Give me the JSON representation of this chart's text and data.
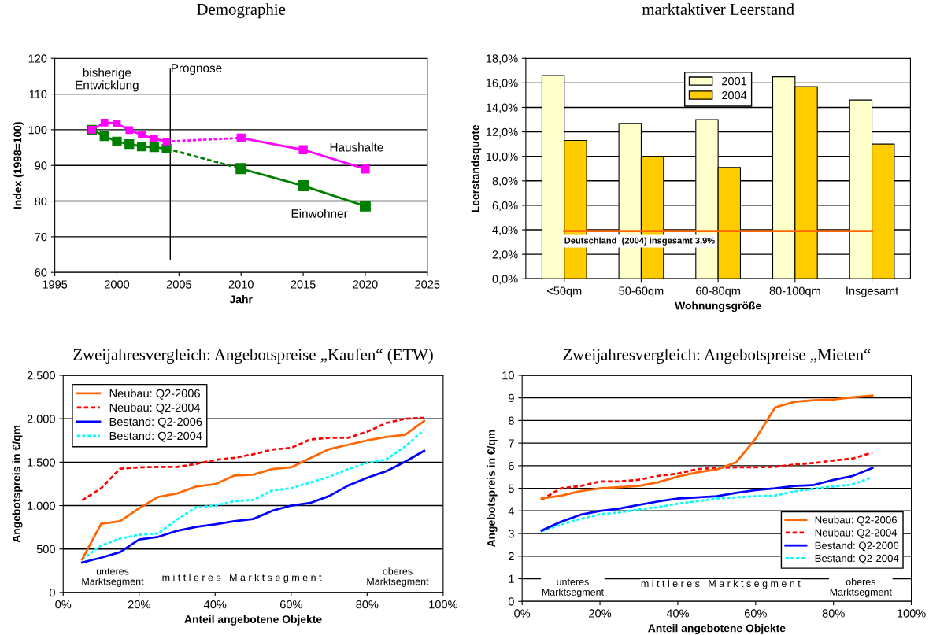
{
  "chart_data": [
    {
      "type": "line",
      "title": "Demographie",
      "xlabel": "Jahr",
      "ylabel": "Index (1998=100)",
      "xlim": [
        1995,
        2025
      ],
      "xticks": [
        1995,
        2000,
        2005,
        2010,
        2015,
        2020,
        2025
      ],
      "ylim": [
        60,
        120
      ],
      "yticks": [
        60,
        70,
        80,
        90,
        100,
        110,
        120
      ],
      "grid": "y",
      "legend": false,
      "series": [
        {
          "color": "#ff00ff",
          "x": [
            1998,
            1999,
            2000,
            2001,
            2002,
            2003,
            2004
          ],
          "values": [
            100,
            102,
            101.8,
            99.9,
            98.6,
            97.5,
            96.7
          ],
          "marker": "square",
          "line_style": "solid"
        },
        {
          "color": "#ff00ff",
          "x": [
            2004,
            2010
          ],
          "values": [
            96.7,
            97.7
          ],
          "line_style": "dotted"
        },
        {
          "color": "#ff00ff",
          "x": [
            2010,
            2015,
            2020
          ],
          "values": [
            97.7,
            94.4,
            89
          ],
          "marker": "square",
          "line_style": "solid"
        },
        {
          "color": "#008000",
          "x": [
            1998,
            1999,
            2000,
            2001,
            2002,
            2003,
            2004
          ],
          "values": [
            100,
            98.2,
            96.7,
            96,
            95.3,
            95.1,
            94.7
          ],
          "marker": "square",
          "line_style": "solid"
        },
        {
          "color": "#008000",
          "x": [
            2004,
            2010
          ],
          "values": [
            94.7,
            89.1
          ],
          "line_style": "dashed"
        },
        {
          "color": "#008000",
          "x": [
            2010,
            2015,
            2020
          ],
          "values": [
            89.1,
            84.3,
            78.6
          ],
          "marker": "square",
          "line_style": "solid"
        }
      ],
      "ref_lines": [
        {
          "axis": "x",
          "value": 2004.3,
          "color": "#000000"
        }
      ],
      "annotations": [
        "bisherige\nEntwicklung",
        "Prognose",
        "Haushalte",
        "Einwohner"
      ]
    },
    {
      "type": "bar",
      "title": "marktaktiver Leerstand",
      "xlabel": "Wohnungsgröße",
      "ylabel": "Leerstandsquote",
      "categories": [
        "<50qm",
        "50-60qm",
        "60-80qm",
        "80-100qm",
        "Insgesamt"
      ],
      "ylim": [
        0,
        18
      ],
      "yticks": [
        {
          "value": 0,
          "label": "0,0%"
        },
        {
          "value": 2,
          "label": "2,0%"
        },
        {
          "value": 4,
          "label": "4,0%"
        },
        {
          "value": 6,
          "label": "6,0%"
        },
        {
          "value": 8,
          "label": "8,0%"
        },
        {
          "value": 10,
          "label": "10,0%"
        },
        {
          "value": 12,
          "label": "12,0%"
        },
        {
          "value": 14,
          "label": "14,0%"
        },
        {
          "value": 16,
          "label": "16,0%"
        },
        {
          "value": 18,
          "label": "18,0%"
        }
      ],
      "grid": "y",
      "legend": "top center",
      "series": [
        {
          "name": "2001",
          "color": "#ffffcc",
          "values": [
            16.6,
            12.7,
            13.0,
            16.5,
            14.6
          ]
        },
        {
          "name": "2004",
          "color": "#ffcc00",
          "values": [
            11.3,
            10.0,
            9.1,
            15.7,
            11.0
          ]
        }
      ],
      "ref_lines": [
        {
          "axis": "y",
          "value": 3.9,
          "label": "Deutschland  (2004) insgesamt 3,9%",
          "color": "#ff6600"
        }
      ]
    },
    {
      "type": "line",
      "title": "Zweijahresvergleich: Angebotspreise „Kaufen“ (ETW)",
      "xlabel": "Anteil angebotene Objekte",
      "ylabel": "Angebotspreis in €/qm",
      "x": [
        5,
        10,
        15,
        20,
        25,
        30,
        35,
        40,
        45,
        50,
        55,
        60,
        65,
        70,
        75,
        80,
        85,
        90,
        95
      ],
      "xlim": [
        0,
        100
      ],
      "xticks": [
        {
          "value": 0,
          "label": "0%"
        },
        {
          "value": 20,
          "label": "20%"
        },
        {
          "value": 40,
          "label": "40%"
        },
        {
          "value": 60,
          "label": "60%"
        },
        {
          "value": 80,
          "label": "80%"
        },
        {
          "value": 100,
          "label": "100%"
        }
      ],
      "ylim": [
        0,
        2500
      ],
      "yticks": [
        {
          "value": 0,
          "label": "0"
        },
        {
          "value": 500,
          "label": "500"
        },
        {
          "value": 1000,
          "label": "1.000"
        },
        {
          "value": 1500,
          "label": "1.500"
        },
        {
          "value": 2000,
          "label": "2.000"
        },
        {
          "value": 2500,
          "label": "2.500"
        }
      ],
      "grid": "y",
      "legend": "top left",
      "series": [
        {
          "name": "Neubau: Q2-2006",
          "color": "#ff6600",
          "line_style": "solid",
          "values": [
            380,
            790,
            820,
            970,
            1100,
            1140,
            1220,
            1245,
            1345,
            1355,
            1420,
            1440,
            1545,
            1650,
            1700,
            1750,
            1790,
            1815,
            1975
          ]
        },
        {
          "name": "Neubau: Q2-2004",
          "color": "#ff0000",
          "line_style": "dashed",
          "values": [
            1060,
            1200,
            1425,
            1440,
            1445,
            1445,
            1480,
            1525,
            1550,
            1590,
            1645,
            1665,
            1760,
            1780,
            1780,
            1850,
            1950,
            2000,
            2010
          ]
        },
        {
          "name": "Bestand: Q2-2006",
          "color": "#0000ff",
          "line_style": "solid",
          "values": [
            345,
            400,
            465,
            610,
            640,
            710,
            755,
            785,
            820,
            845,
            940,
            1000,
            1030,
            1110,
            1230,
            1320,
            1395,
            1505,
            1630
          ]
        },
        {
          "name": "Bestand: Q2-2004",
          "color": "#00ffff",
          "line_style": "dotted",
          "values": [
            380,
            540,
            620,
            665,
            680,
            840,
            980,
            1000,
            1050,
            1065,
            1175,
            1200,
            1265,
            1330,
            1420,
            1490,
            1530,
            1680,
            1870
          ]
        }
      ],
      "annotations": [
        "unteres\nMarktsegment",
        "m i t t l e r e s   M a r k t s e g m e n t",
        "oberes\nMarktsegment"
      ]
    },
    {
      "type": "line",
      "title": "Zweijahresvergleich: Angebotspreise „Mieten“",
      "xlabel": "Anteil angebotene Objekte",
      "ylabel": "Angebotspreis in €/qm",
      "x": [
        5,
        10,
        15,
        20,
        25,
        30,
        35,
        40,
        45,
        50,
        55,
        60,
        65,
        70,
        75,
        80,
        85,
        90
      ],
      "xlim": [
        0,
        100
      ],
      "xticks": [
        {
          "value": 0,
          "label": "0%"
        },
        {
          "value": 20,
          "label": "20%"
        },
        {
          "value": 40,
          "label": "40%"
        },
        {
          "value": 60,
          "label": "60%"
        },
        {
          "value": 80,
          "label": "80%"
        },
        {
          "value": 100,
          "label": "100%"
        }
      ],
      "ylim": [
        0,
        10
      ],
      "yticks": [
        0,
        1,
        2,
        3,
        4,
        5,
        6,
        7,
        8,
        9,
        10
      ],
      "grid": "y",
      "legend": "bottom right",
      "series": [
        {
          "name": "Neubau: Q2-2006",
          "color": "#ff6600",
          "line_style": "solid",
          "values": [
            4.55,
            4.68,
            4.88,
            5.0,
            5.05,
            5.1,
            5.27,
            5.52,
            5.7,
            5.83,
            6.15,
            7.2,
            8.58,
            8.83,
            8.9,
            8.93,
            9.03,
            9.1
          ]
        },
        {
          "name": "Neubau: Q2-2004",
          "color": "#ff0000",
          "line_style": "dashed",
          "values": [
            4.5,
            5.0,
            5.1,
            5.3,
            5.3,
            5.38,
            5.55,
            5.65,
            5.85,
            5.9,
            5.93,
            5.93,
            5.95,
            6.05,
            6.12,
            6.23,
            6.32,
            6.58
          ]
        },
        {
          "name": "Bestand: Q2-2006",
          "color": "#0000ff",
          "line_style": "solid",
          "values": [
            3.13,
            3.52,
            3.83,
            4.0,
            4.1,
            4.27,
            4.42,
            4.55,
            4.6,
            4.65,
            4.8,
            4.92,
            5.0,
            5.1,
            5.15,
            5.37,
            5.55,
            5.9
          ]
        },
        {
          "name": "Bestand: Q2-2004",
          "color": "#00ffff",
          "line_style": "dotted",
          "values": [
            3.1,
            3.4,
            3.65,
            3.85,
            3.93,
            4.07,
            4.17,
            4.32,
            4.43,
            4.55,
            4.6,
            4.65,
            4.68,
            4.87,
            4.98,
            5.08,
            5.17,
            5.5
          ]
        }
      ],
      "annotations": [
        "unteres\nMarktsegment",
        "m i t t l e r e s   M a r k t s e g m e n t",
        "oberes\nMarktsegment"
      ]
    }
  ]
}
